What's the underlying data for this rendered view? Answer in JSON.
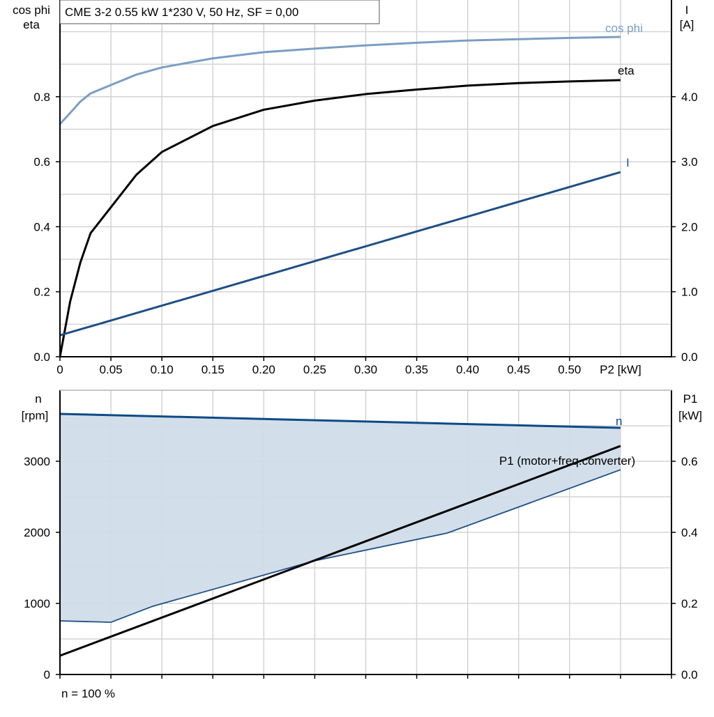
{
  "header": {
    "title": "CME 3-2   0.55 kW   1*230 V, 50 Hz, SF = 0,00"
  },
  "footer": {
    "note": "n = 100 %"
  },
  "colors": {
    "cos_phi": "#7a9ec4",
    "eta": "#000000",
    "I": "#1d4f86",
    "n": "#0d4a86",
    "range_fill": "#d0dce8",
    "min_line": "#1d4f86",
    "P1": "#000000",
    "grid": "#d3d3d3"
  },
  "chart_data": [
    {
      "type": "line",
      "xlabel": "P2 [kW]",
      "ylabel_left": [
        "cos phi",
        "eta"
      ],
      "ylabel_right": [
        "I",
        "[A]"
      ],
      "xlim": [
        0,
        0.6
      ],
      "ylim_left": [
        0,
        1.1
      ],
      "ylim_right": [
        0,
        5.5
      ],
      "xticks": [
        "0",
        "0.05",
        "0.10",
        "0.15",
        "0.20",
        "0.25",
        "0.30",
        "0.35",
        "0.40",
        "0.45",
        "0.50"
      ],
      "yticks_left": [
        "0.0",
        "0.2",
        "0.4",
        "0.6",
        "0.8"
      ],
      "yticks_right": [
        "0.0",
        "1.0",
        "2.0",
        "3.0",
        "4.0"
      ],
      "grid": true,
      "series": [
        {
          "name": "cos phi",
          "axis": "left",
          "x": [
            0,
            0.01,
            0.02,
            0.03,
            0.05,
            0.075,
            0.1,
            0.15,
            0.2,
            0.25,
            0.3,
            0.35,
            0.4,
            0.45,
            0.5,
            0.55
          ],
          "y": [
            0.716,
            0.75,
            0.785,
            0.81,
            0.836,
            0.868,
            0.89,
            0.918,
            0.937,
            0.948,
            0.958,
            0.966,
            0.973,
            0.977,
            0.981,
            0.984
          ]
        },
        {
          "name": "eta",
          "axis": "left",
          "x": [
            0,
            0.01,
            0.02,
            0.03,
            0.04,
            0.05,
            0.075,
            0.1,
            0.15,
            0.2,
            0.25,
            0.3,
            0.35,
            0.4,
            0.45,
            0.5,
            0.55
          ],
          "y": [
            0,
            0.17,
            0.29,
            0.38,
            0.42,
            0.46,
            0.56,
            0.63,
            0.71,
            0.76,
            0.788,
            0.808,
            0.822,
            0.834,
            0.842,
            0.847,
            0.851
          ]
        },
        {
          "name": "I",
          "axis": "right",
          "x": [
            0,
            0.55
          ],
          "y": [
            0.33,
            2.84
          ]
        }
      ]
    },
    {
      "type": "area",
      "xlabel": "",
      "ylabel_left": [
        "n",
        "[rpm]"
      ],
      "ylabel_right": [
        "P1",
        "[kW]"
      ],
      "xlim": [
        0,
        0.6
      ],
      "ylim_left": [
        0,
        4000
      ],
      "ylim_right": [
        0,
        0.8
      ],
      "yticks_left": [
        "0",
        "1000",
        "2000",
        "3000"
      ],
      "yticks_right": [
        "0.0",
        "0.2",
        "0.4",
        "0.6"
      ],
      "grid": true,
      "series": [
        {
          "name": "n",
          "axis": "left",
          "x": [
            0,
            0.55
          ],
          "y": [
            3667,
            3470
          ]
        },
        {
          "name": "",
          "axis": "left",
          "x": [
            0,
            0.05,
            0.091,
            0.25,
            0.38,
            0.55
          ],
          "y": [
            755,
            735,
            960,
            1600,
            1990,
            2880
          ]
        },
        {
          "name": "P1 (motor+freq.converter)",
          "axis": "right",
          "x": [
            0,
            0.55
          ],
          "y": [
            0.053,
            0.643
          ]
        }
      ]
    }
  ]
}
